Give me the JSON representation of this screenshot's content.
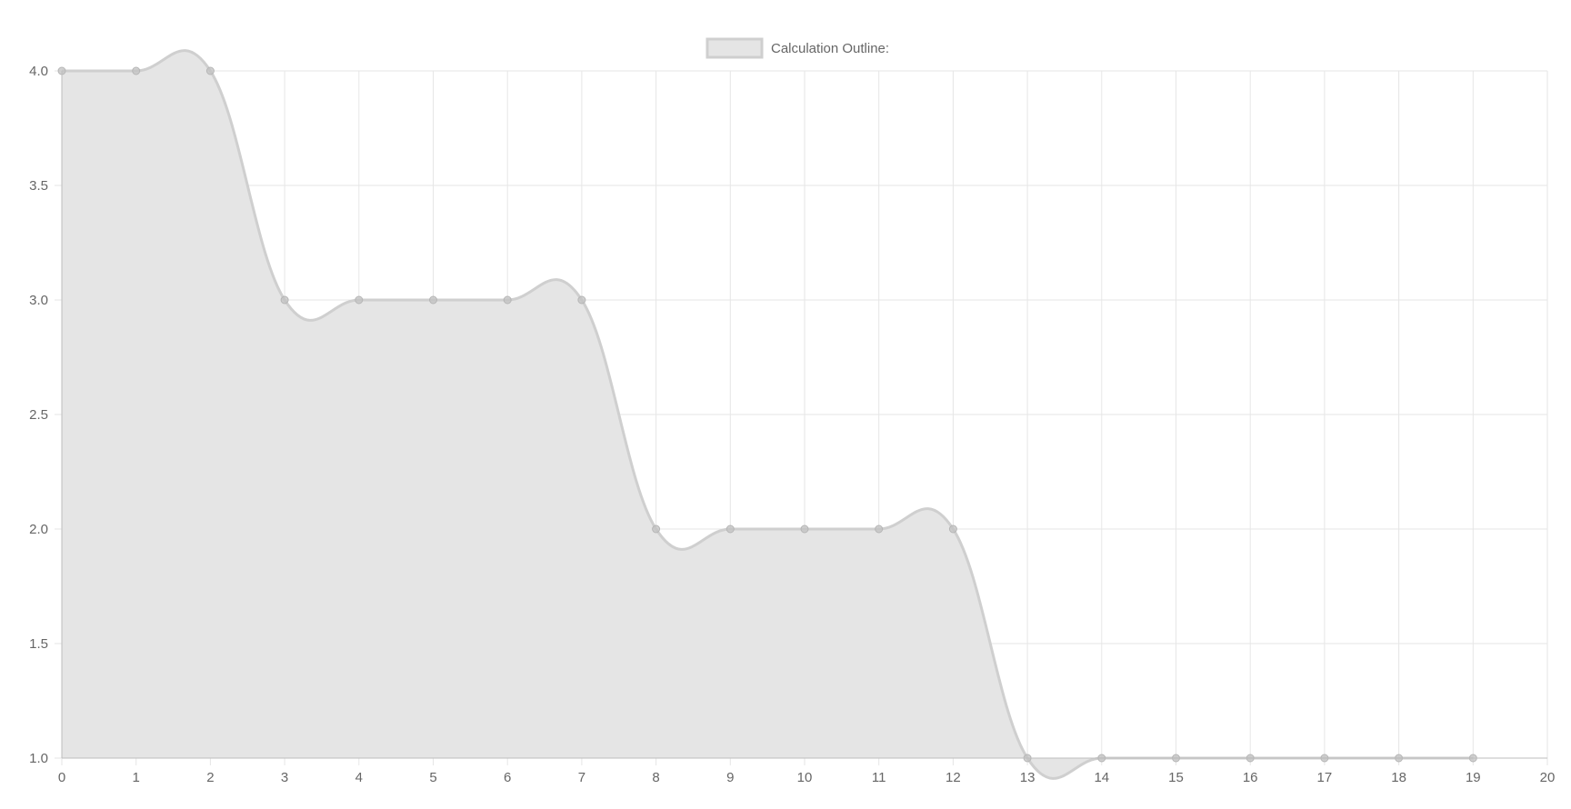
{
  "chart_data": {
    "type": "area",
    "series": [
      {
        "name": "Calculation Outline:",
        "x": [
          0,
          1,
          2,
          3,
          4,
          5,
          6,
          7,
          8,
          9,
          10,
          11,
          12,
          13,
          14,
          15,
          16,
          17,
          18,
          19
        ],
        "values": [
          4,
          4,
          4,
          3,
          3,
          3,
          3,
          3,
          2,
          2,
          2,
          2,
          2,
          1,
          1,
          1,
          1,
          1,
          1,
          1
        ]
      }
    ],
    "xlim": [
      0,
      20
    ],
    "ylim": [
      1,
      4
    ],
    "x_ticks": [
      "0",
      "1",
      "2",
      "3",
      "4",
      "5",
      "6",
      "7",
      "8",
      "9",
      "10",
      "11",
      "12",
      "13",
      "14",
      "15",
      "16",
      "17",
      "18",
      "19",
      "20"
    ],
    "y_ticks": [
      "1.0",
      "1.5",
      "2.0",
      "2.5",
      "3.0",
      "3.5",
      "4.0"
    ],
    "grid": true,
    "legend_position": "top",
    "colors": {
      "fill": "#e5e5e5",
      "line": "#cfcfcf",
      "point": "#c2c2c2",
      "grid": "#e6e6e6",
      "text": "#666666"
    }
  }
}
